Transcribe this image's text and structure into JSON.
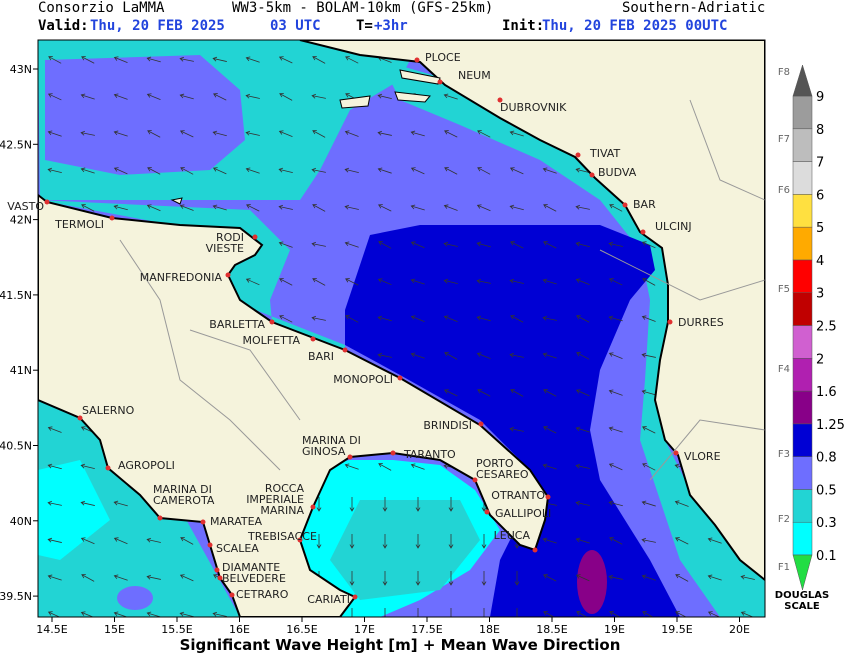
{
  "header": {
    "org": "Consorzio LaMMA",
    "model": "WW3-5km - BOLAM-10km (GFS-25km)",
    "region": "Southern-Adriatic",
    "valid_label": "Valid:",
    "valid_date": "Thu, 20 FEB 2025",
    "valid_hour": "03 UTC",
    "t_label": "T=",
    "t_value": "+3hr",
    "init_label": "Init:",
    "init_date": "Thu, 20 FEB 2025 00UTC"
  },
  "map": {
    "lat_ticks": [
      {
        "value": 43,
        "label": "43N"
      },
      {
        "value": 42.5,
        "label": "42.5N"
      },
      {
        "value": 42,
        "label": "42N"
      },
      {
        "value": 41.5,
        "label": "41.5N"
      },
      {
        "value": 41,
        "label": "41N"
      },
      {
        "value": 40.5,
        "label": "40.5N"
      },
      {
        "value": 40,
        "label": "40N"
      },
      {
        "value": 39.5,
        "label": "39.5N"
      }
    ],
    "lon_ticks": [
      {
        "value": 14.5,
        "label": "14.5E"
      },
      {
        "value": 15,
        "label": "15E"
      },
      {
        "value": 15.5,
        "label": "15.5E"
      },
      {
        "value": 16,
        "label": "16E"
      },
      {
        "value": 16.5,
        "label": "16.5E"
      },
      {
        "value": 17,
        "label": "17E"
      },
      {
        "value": 17.5,
        "label": "17.5E"
      },
      {
        "value": 18,
        "label": "18E"
      },
      {
        "value": 18.5,
        "label": "18.5E"
      },
      {
        "value": 19,
        "label": "19E"
      },
      {
        "value": 19.5,
        "label": "19.5E"
      },
      {
        "value": 20,
        "label": "20E"
      }
    ],
    "cities": [
      [
        "PLOCE"
      ],
      [
        "NEUM"
      ],
      [
        "DUBROVNIK"
      ],
      [
        "TIVAT"
      ],
      [
        "BUDVA"
      ],
      [
        "BAR"
      ],
      [
        "ULCINJ"
      ],
      [
        "DURRES"
      ],
      [
        "VLORE"
      ],
      [
        "VASTO"
      ],
      [
        "TERMOLI"
      ],
      [
        "RODI",
        "VIESTE"
      ],
      [
        "MANFREDONIA"
      ],
      [
        "BARLETTA"
      ],
      [
        "MOLFETTA"
      ],
      [
        "BARI"
      ],
      [
        "MONOPOLI"
      ],
      [
        "BRINDISI"
      ],
      [
        "MARINA DI",
        "GINOSA"
      ],
      [
        "TARANTO"
      ],
      [
        "PORTO",
        "CESAREO"
      ],
      [
        "OTRANTO"
      ],
      [
        "GALLIPOLI"
      ],
      [
        "LEUCA"
      ],
      [
        "SALERNO"
      ],
      [
        "AGROPOLI"
      ],
      [
        "MARINA DI",
        "CAMEROTA"
      ],
      [
        "ROCCA",
        "IMPERIALE",
        "MARINA"
      ],
      [
        "MARATEA"
      ],
      [
        "TREBISACCE"
      ],
      [
        "SCALEA"
      ],
      [
        "DIAMANTE"
      ],
      [
        "BELVEDERE"
      ],
      [
        "CETRARO"
      ],
      [
        "CARIATI"
      ]
    ],
    "caption": "Significant Wave Height [m] + Mean Wave Direction"
  },
  "legend": {
    "levels": [
      0.1,
      0.3,
      0.5,
      0.8,
      1.25,
      1.6,
      2,
      2.5,
      3,
      4,
      5,
      6,
      7,
      8,
      9
    ],
    "colors": [
      "#00ffff",
      "#22d4d4",
      "#6e6eff",
      "#0000d4",
      "#880088",
      "#b020b0",
      "#d060d0",
      "#c00000",
      "#ff0000",
      "#ffaa00",
      "#ffe040",
      "#dcdcdc",
      "#bdbdbd",
      "#9c9c9c"
    ],
    "low_color": "#22dd44",
    "high_color": "#555555",
    "douglas": [
      "F8",
      "F7",
      "F6",
      "F5",
      "F4",
      "F3",
      "F2",
      "F1"
    ],
    "scale_title": [
      "DOUGLAS",
      "SCALE"
    ]
  }
}
